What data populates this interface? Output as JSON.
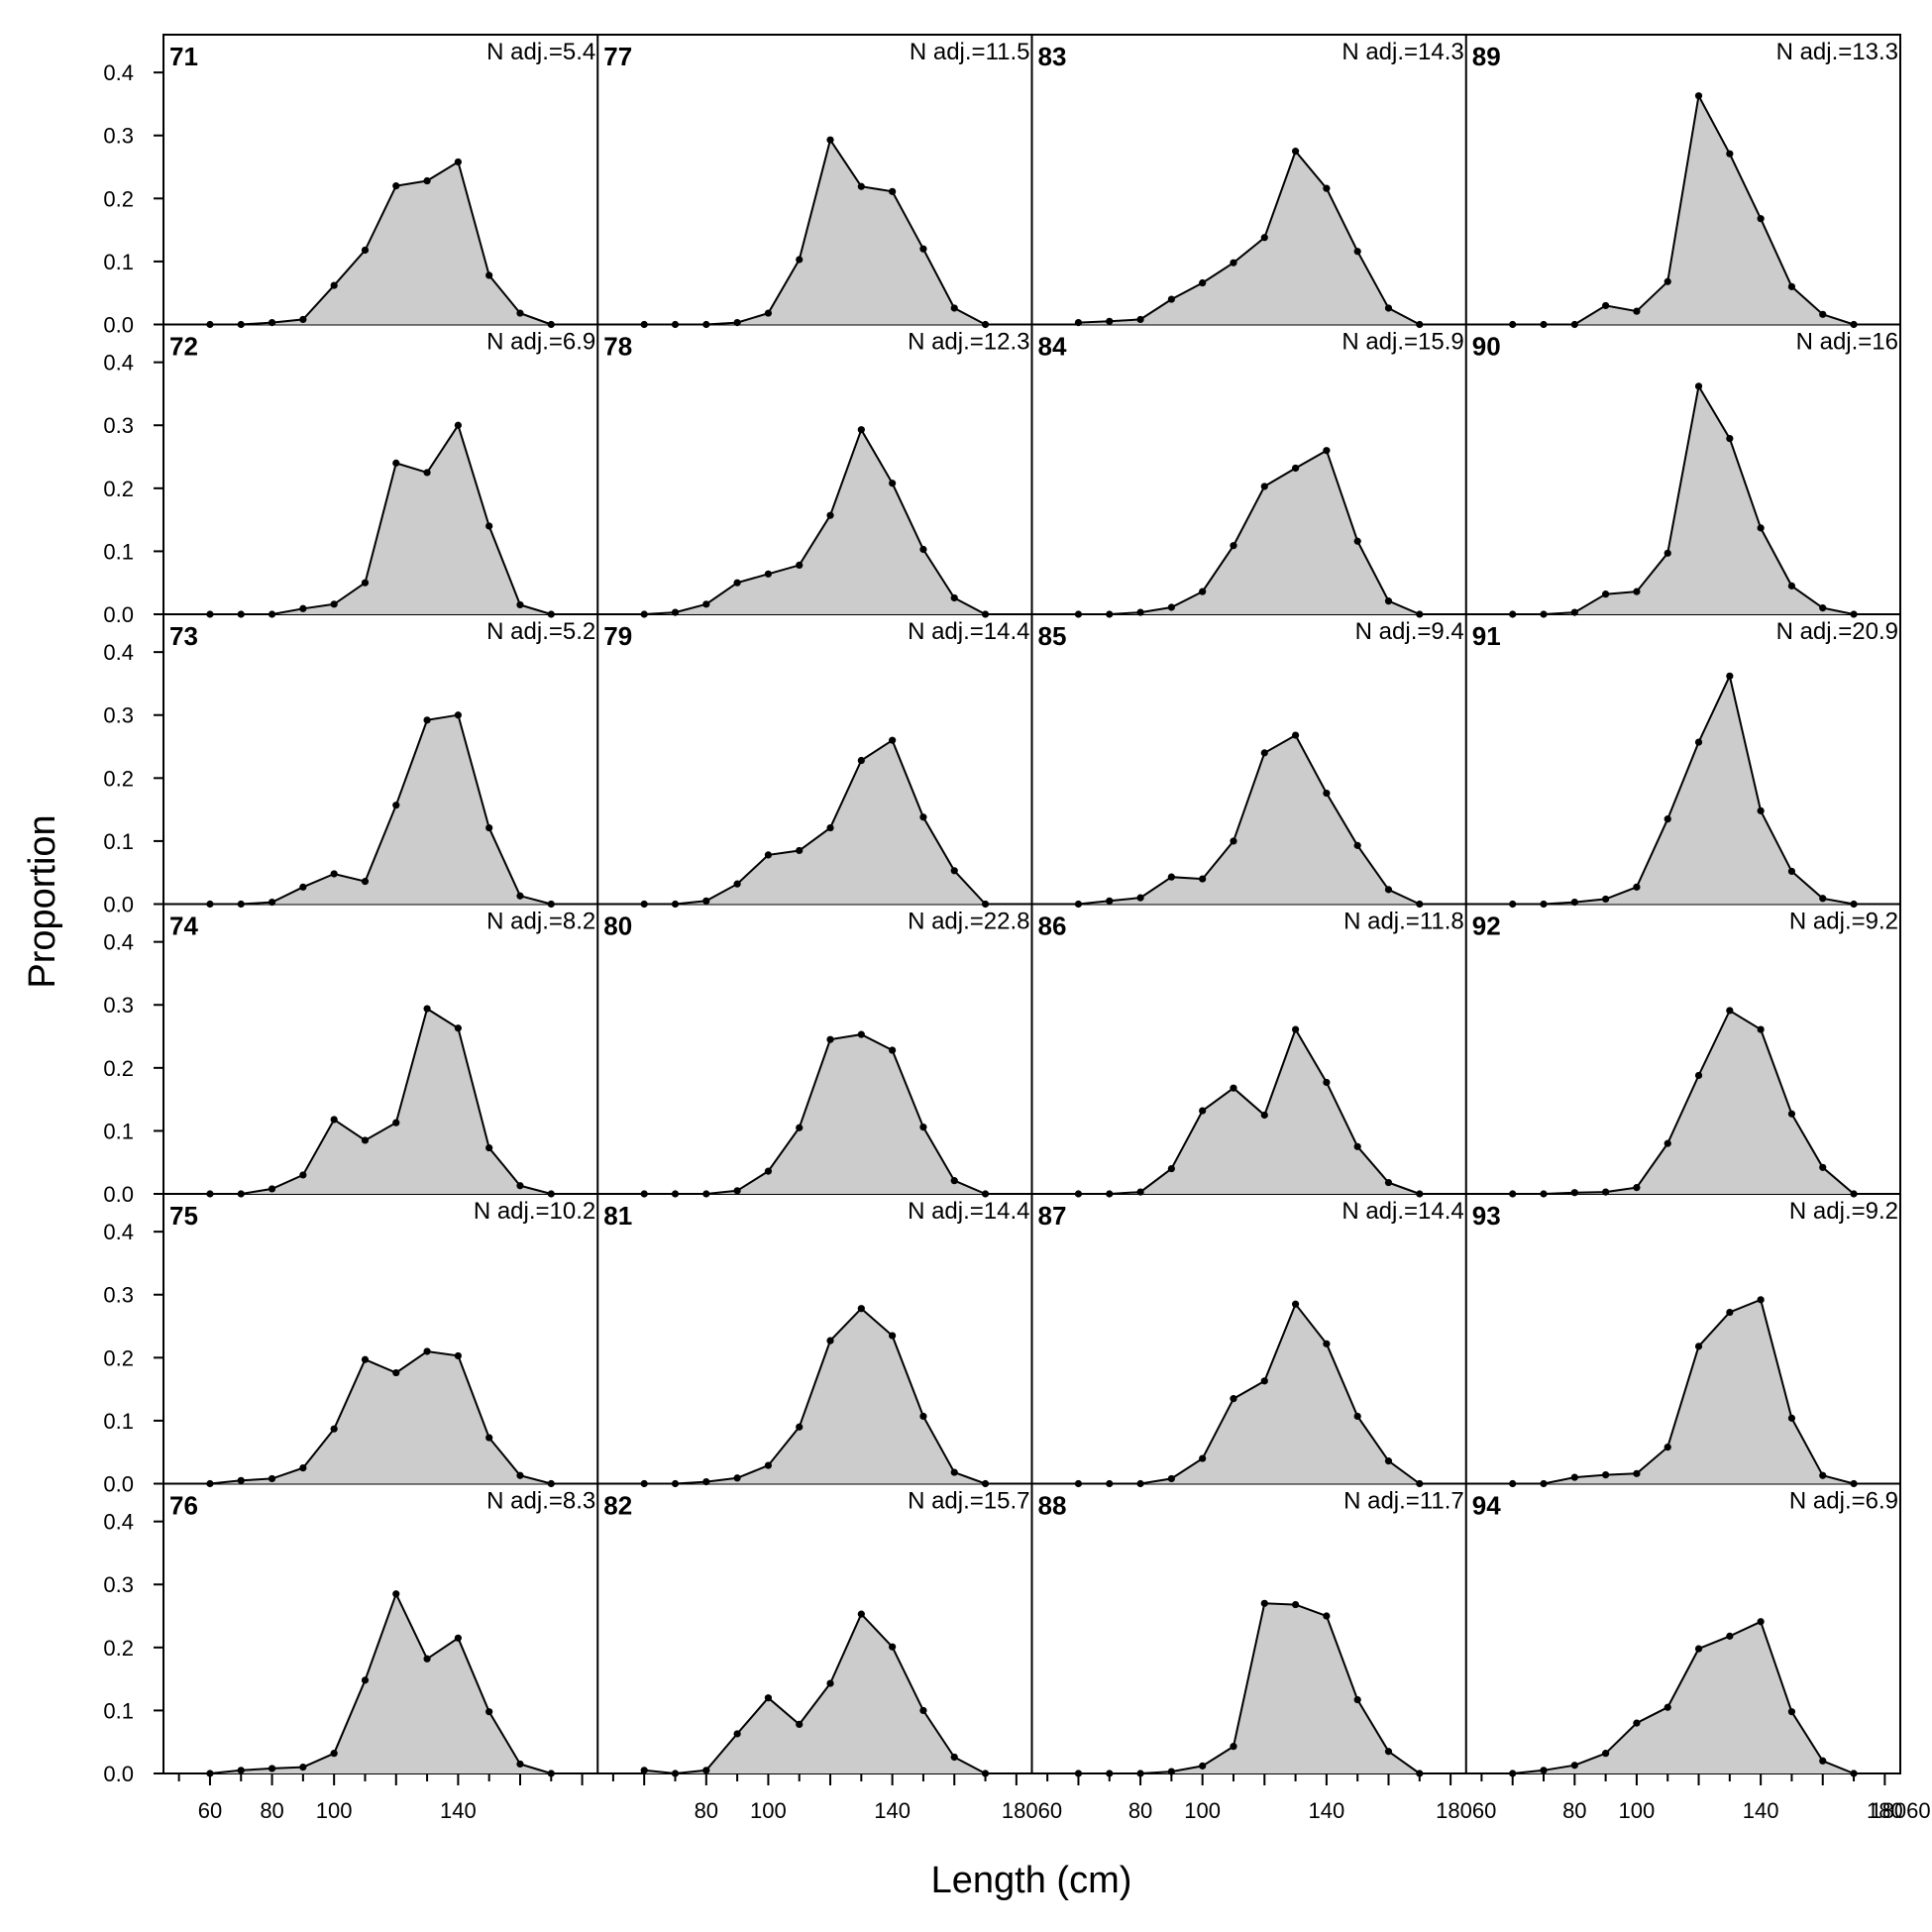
{
  "chart_data": {
    "type": "area",
    "xlabel": "Length (cm)",
    "ylabel": "Proportion",
    "xlim": [
      45,
      185
    ],
    "ylim": [
      0,
      0.46
    ],
    "x": [
      60,
      70,
      80,
      90,
      100,
      110,
      120,
      130,
      140,
      150,
      160,
      170
    ],
    "x_tick_labels": [
      "60",
      "80",
      "100",
      "140",
      "18060",
      "80",
      "100",
      "140",
      "18060",
      "80",
      "100",
      "140",
      "18060",
      "80",
      "100",
      "140",
      "180"
    ],
    "y_tick_labels": [
      "0.0",
      "0.1",
      "0.2",
      "0.3",
      "0.4"
    ],
    "layout": {
      "rows": 6,
      "cols": 4,
      "order": "column-major"
    },
    "colors": {
      "fill": "#cccccc",
      "line": "#000000",
      "frame": "#000000"
    },
    "panels": [
      {
        "label": "71",
        "n_adj": "N adj.=5.4",
        "values": [
          0,
          0,
          0.003,
          0.008,
          0.062,
          0.118,
          0.22,
          0.228,
          0.258,
          0.078,
          0.018,
          0
        ]
      },
      {
        "label": "72",
        "n_adj": "N adj.=6.9",
        "values": [
          0,
          0,
          0,
          0.009,
          0.016,
          0.05,
          0.24,
          0.225,
          0.3,
          0.14,
          0.015,
          0
        ]
      },
      {
        "label": "73",
        "n_adj": "N adj.=5.2",
        "values": [
          0,
          0,
          0.003,
          0.027,
          0.048,
          0.036,
          0.157,
          0.292,
          0.3,
          0.121,
          0.013,
          0
        ]
      },
      {
        "label": "74",
        "n_adj": "N adj.=8.2",
        "values": [
          0,
          0,
          0.008,
          0.03,
          0.118,
          0.085,
          0.113,
          0.294,
          0.263,
          0.073,
          0.013,
          0
        ]
      },
      {
        "label": "75",
        "n_adj": "N adj.=10.2",
        "values": [
          0,
          0.005,
          0.008,
          0.025,
          0.087,
          0.197,
          0.176,
          0.21,
          0.203,
          0.073,
          0.013,
          0
        ]
      },
      {
        "label": "76",
        "n_adj": "N adj.=8.3",
        "values": [
          0,
          0.005,
          0.008,
          0.01,
          0.032,
          0.148,
          0.285,
          0.182,
          0.215,
          0.098,
          0.015,
          0
        ]
      },
      {
        "label": "77",
        "n_adj": "N adj.=11.5",
        "values": [
          0,
          0,
          0,
          0.003,
          0.018,
          0.103,
          0.293,
          0.219,
          0.211,
          0.12,
          0.026,
          0
        ]
      },
      {
        "label": "78",
        "n_adj": "N adj.=12.3",
        "values": [
          0,
          0.003,
          0.016,
          0.05,
          0.064,
          0.078,
          0.157,
          0.293,
          0.208,
          0.103,
          0.026,
          0
        ]
      },
      {
        "label": "79",
        "n_adj": "N adj.=14.4",
        "values": [
          0,
          0,
          0.005,
          0.032,
          0.078,
          0.085,
          0.121,
          0.228,
          0.26,
          0.138,
          0.053,
          0
        ]
      },
      {
        "label": "80",
        "n_adj": "N adj.=22.8",
        "values": [
          0,
          0,
          0,
          0.005,
          0.036,
          0.105,
          0.245,
          0.253,
          0.228,
          0.106,
          0.021,
          0
        ]
      },
      {
        "label": "81",
        "n_adj": "N adj.=14.4",
        "values": [
          0,
          0,
          0.003,
          0.009,
          0.029,
          0.09,
          0.227,
          0.278,
          0.235,
          0.107,
          0.018,
          0
        ]
      },
      {
        "label": "82",
        "n_adj": "N adj.=15.7",
        "values": [
          0.005,
          0,
          0.005,
          0.063,
          0.12,
          0.078,
          0.143,
          0.253,
          0.201,
          0.1,
          0.026,
          0
        ]
      },
      {
        "label": "83",
        "n_adj": "N adj.=14.3",
        "values": [
          0.003,
          0.005,
          0.008,
          0.04,
          0.066,
          0.098,
          0.138,
          0.275,
          0.216,
          0.116,
          0.026,
          0
        ]
      },
      {
        "label": "84",
        "n_adj": "N adj.=15.9",
        "values": [
          0,
          0,
          0.003,
          0.011,
          0.036,
          0.109,
          0.203,
          0.232,
          0.26,
          0.116,
          0.021,
          0
        ]
      },
      {
        "label": "85",
        "n_adj": "N adj.=9.4",
        "values": [
          0,
          0.005,
          0.01,
          0.043,
          0.04,
          0.1,
          0.24,
          0.268,
          0.176,
          0.093,
          0.023,
          0
        ]
      },
      {
        "label": "86",
        "n_adj": "N adj.=11.8",
        "values": [
          0,
          0,
          0.003,
          0.04,
          0.132,
          0.168,
          0.125,
          0.261,
          0.177,
          0.075,
          0.018,
          0
        ]
      },
      {
        "label": "87",
        "n_adj": "N adj.=14.4",
        "values": [
          0,
          0,
          0,
          0.008,
          0.04,
          0.135,
          0.163,
          0.285,
          0.222,
          0.107,
          0.036,
          0
        ]
      },
      {
        "label": "88",
        "n_adj": "N adj.=11.7",
        "values": [
          0,
          0,
          0,
          0.003,
          0.012,
          0.043,
          0.27,
          0.268,
          0.25,
          0.117,
          0.035,
          0
        ]
      },
      {
        "label": "89",
        "n_adj": "N adj.=13.3",
        "values": [
          0,
          0,
          0,
          0.03,
          0.021,
          0.068,
          0.363,
          0.271,
          0.168,
          0.06,
          0.016,
          0
        ]
      },
      {
        "label": "90",
        "n_adj": "N adj.=16",
        "values": [
          0,
          0,
          0.003,
          0.032,
          0.036,
          0.097,
          0.362,
          0.279,
          0.137,
          0.045,
          0.01,
          0
        ]
      },
      {
        "label": "91",
        "n_adj": "N adj.=20.9",
        "values": [
          0,
          0,
          0.003,
          0.008,
          0.027,
          0.135,
          0.257,
          0.362,
          0.148,
          0.052,
          0.009,
          0
        ]
      },
      {
        "label": "92",
        "n_adj": "N adj.=9.2",
        "values": [
          0,
          0,
          0.002,
          0.003,
          0.01,
          0.08,
          0.188,
          0.291,
          0.261,
          0.127,
          0.042,
          0
        ]
      },
      {
        "label": "93",
        "n_adj": "N adj.=9.2",
        "values": [
          0,
          0,
          0.01,
          0.014,
          0.016,
          0.058,
          0.218,
          0.272,
          0.292,
          0.104,
          0.013,
          0
        ]
      },
      {
        "label": "94",
        "n_adj": "N adj.=6.9",
        "values": [
          0,
          0.005,
          0.013,
          0.032,
          0.08,
          0.105,
          0.198,
          0.218,
          0.241,
          0.098,
          0.02,
          0
        ]
      }
    ]
  }
}
